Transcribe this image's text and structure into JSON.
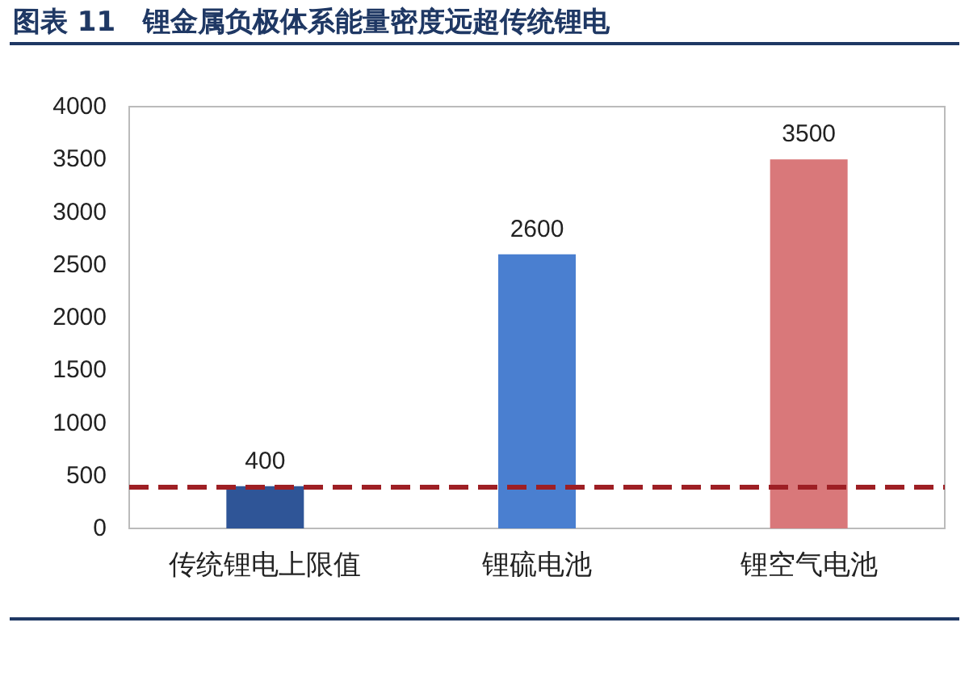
{
  "chart_data": {
    "type": "bar",
    "title": "图表 11　锂金属负极体系能量密度远超传统锂电",
    "categories": [
      "传统锂电上限值",
      "锂硫电池",
      "锂空气电池"
    ],
    "values": [
      400,
      2600,
      3500
    ],
    "colors": [
      "#2f5597",
      "#4a7fd0",
      "#d9787a"
    ],
    "ylim": [
      0,
      4000
    ],
    "yticks": [
      0,
      500,
      1000,
      1500,
      2000,
      2500,
      3000,
      3500,
      4000
    ],
    "grid": false,
    "data_labels": true,
    "ref_lines": [
      {
        "axis": "y",
        "value": 400,
        "color": "#9e1f24",
        "line_style": "dashed"
      }
    ]
  }
}
